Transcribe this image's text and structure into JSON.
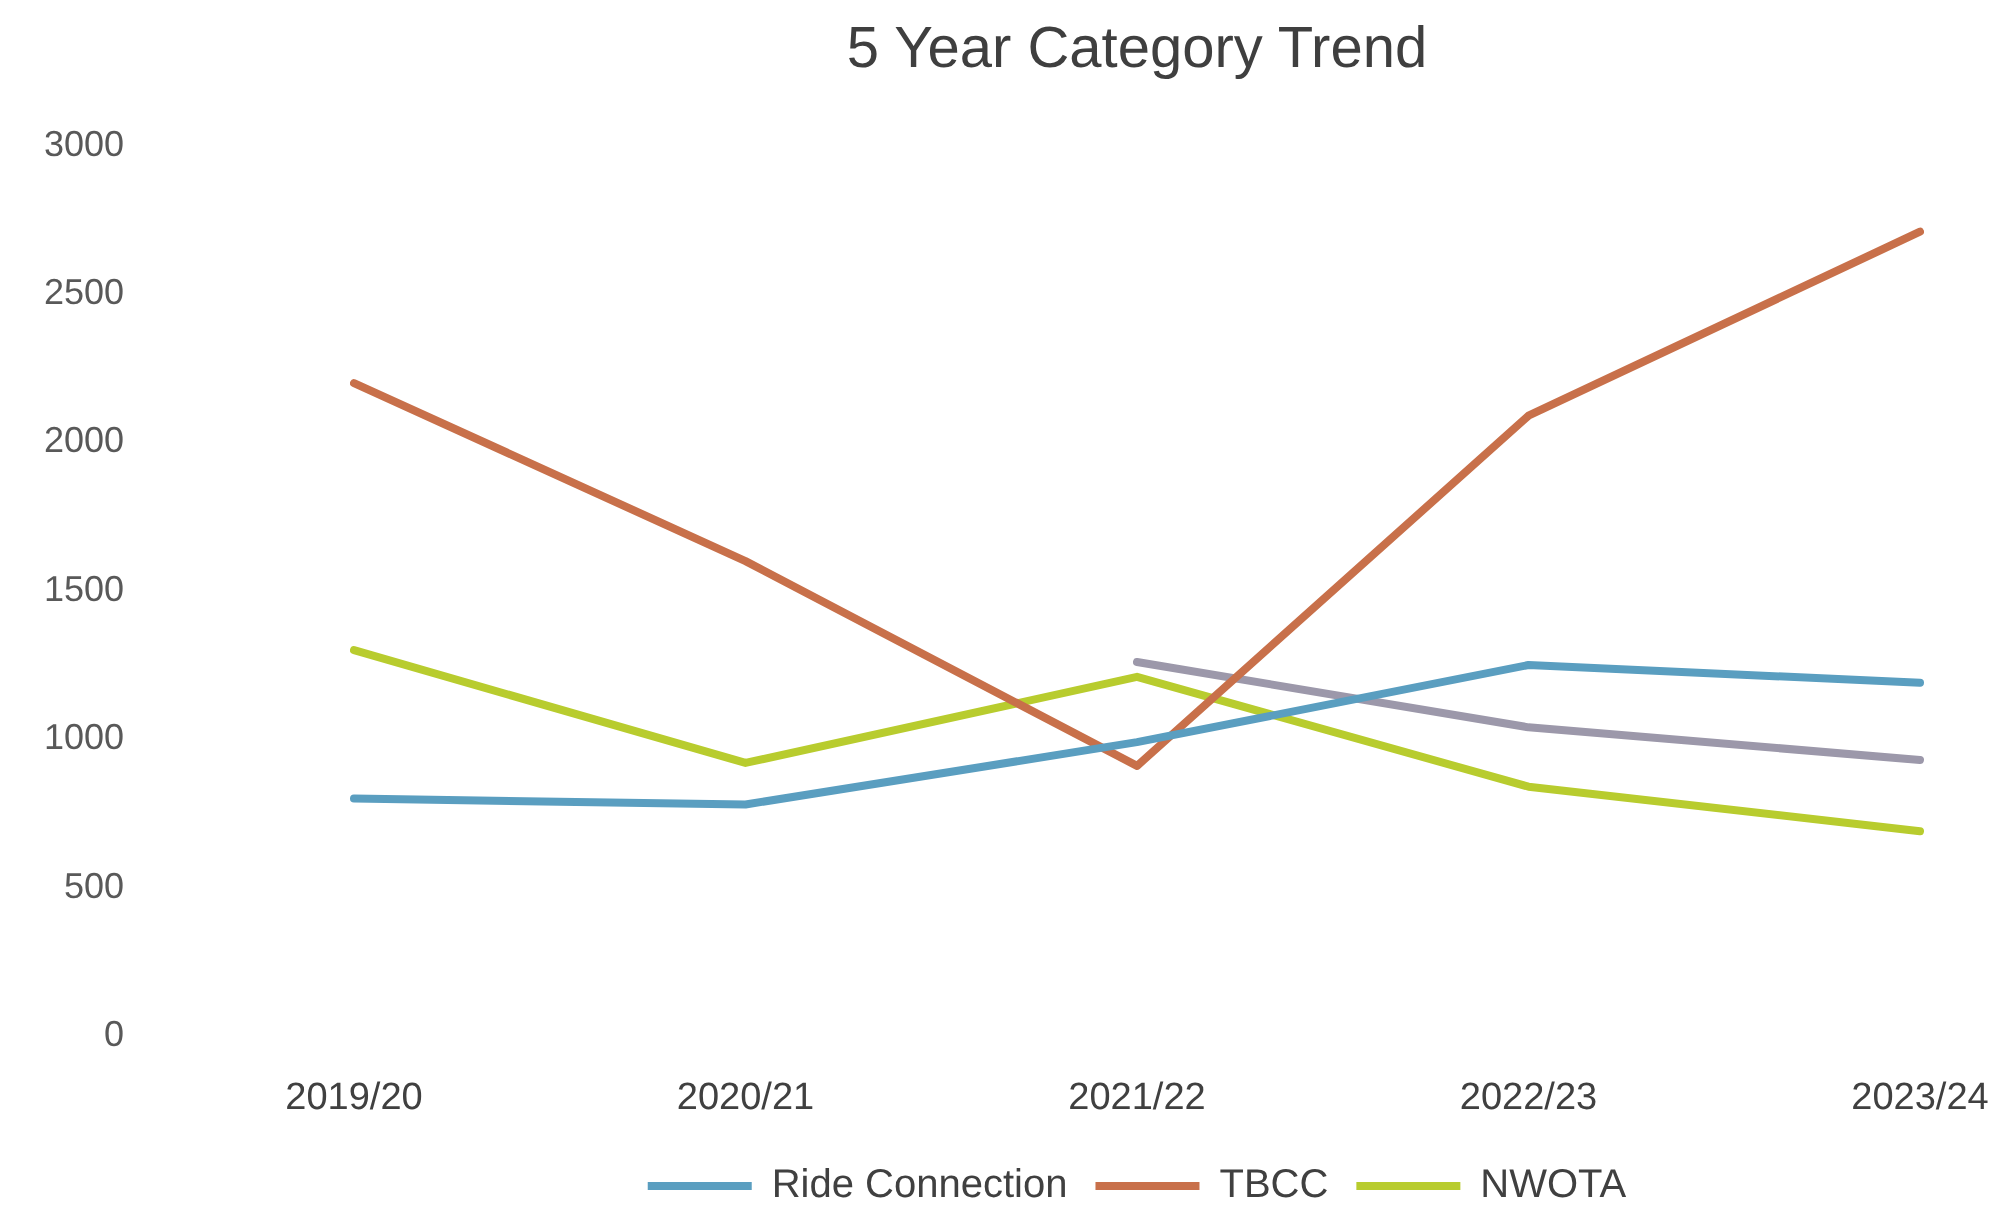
{
  "chart_data": {
    "type": "line",
    "title": "5 Year Category Trend",
    "categories": [
      "2019/20",
      "2020/21",
      "2021/22",
      "2022/23",
      "2023/24"
    ],
    "series": [
      {
        "name": "Ride Connection",
        "color": "#5a9ec0",
        "values": [
          800,
          780,
          990,
          1250,
          1190
        ]
      },
      {
        "name": "TBCC",
        "color": "#c8704a",
        "values": [
          2200,
          1600,
          910,
          2090,
          2710
        ]
      },
      {
        "name": "NWOTA",
        "color": "#b8cc2e",
        "values": [
          1300,
          920,
          1210,
          840,
          690
        ]
      },
      {
        "color": "#9c98aa",
        "values": [
          null,
          null,
          1260,
          1040,
          930
        ]
      }
    ],
    "ylim": [
      0,
      3000
    ],
    "yticks": [
      0,
      500,
      1000,
      1500,
      2000,
      2500,
      3000
    ],
    "grid": false,
    "legend": "bottom",
    "marker": "none",
    "line_style": "solid"
  }
}
